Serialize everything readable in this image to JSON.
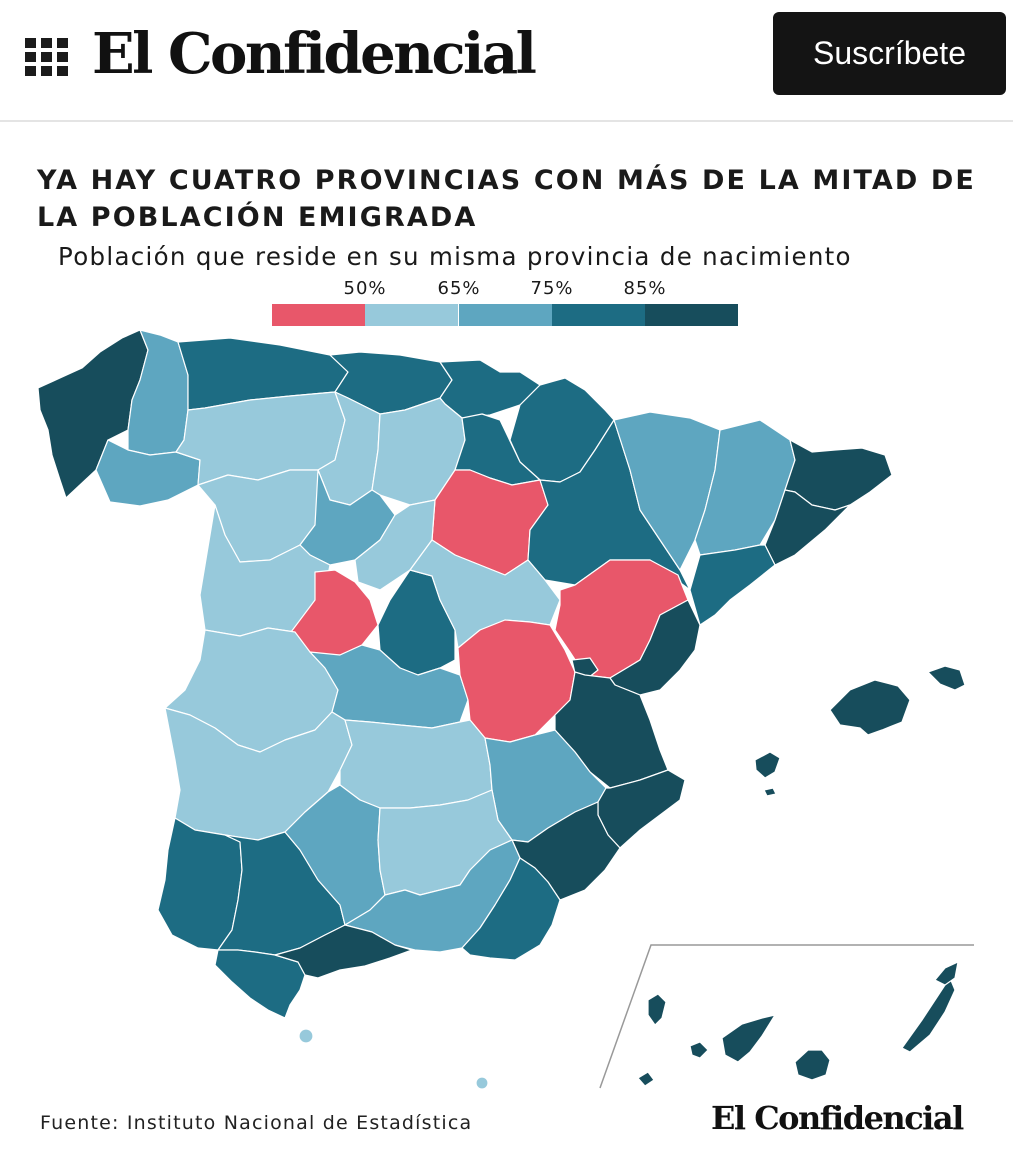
{
  "header": {
    "brand": "El Confidencial",
    "subscribe_label": "Suscríbete",
    "menu_icon": "grid-menu-icon"
  },
  "title": "YA HAY CUATRO PROVINCIAS CON MÁS DE LA MITAD DE LA POBLACIÓN EMIGRADA",
  "subtitle": "Población que reside en su misma provincia de nacimiento",
  "legend": {
    "breaks": [
      "50%",
      "65%",
      "75%",
      "85%"
    ],
    "colors": [
      "#e8576a",
      "#97c9db",
      "#5ea6c0",
      "#1d6c83",
      "#174d5c"
    ]
  },
  "source": "Fuente: Instituto Nacional de Estadística",
  "footer_brand": "El Confidencial"
}
